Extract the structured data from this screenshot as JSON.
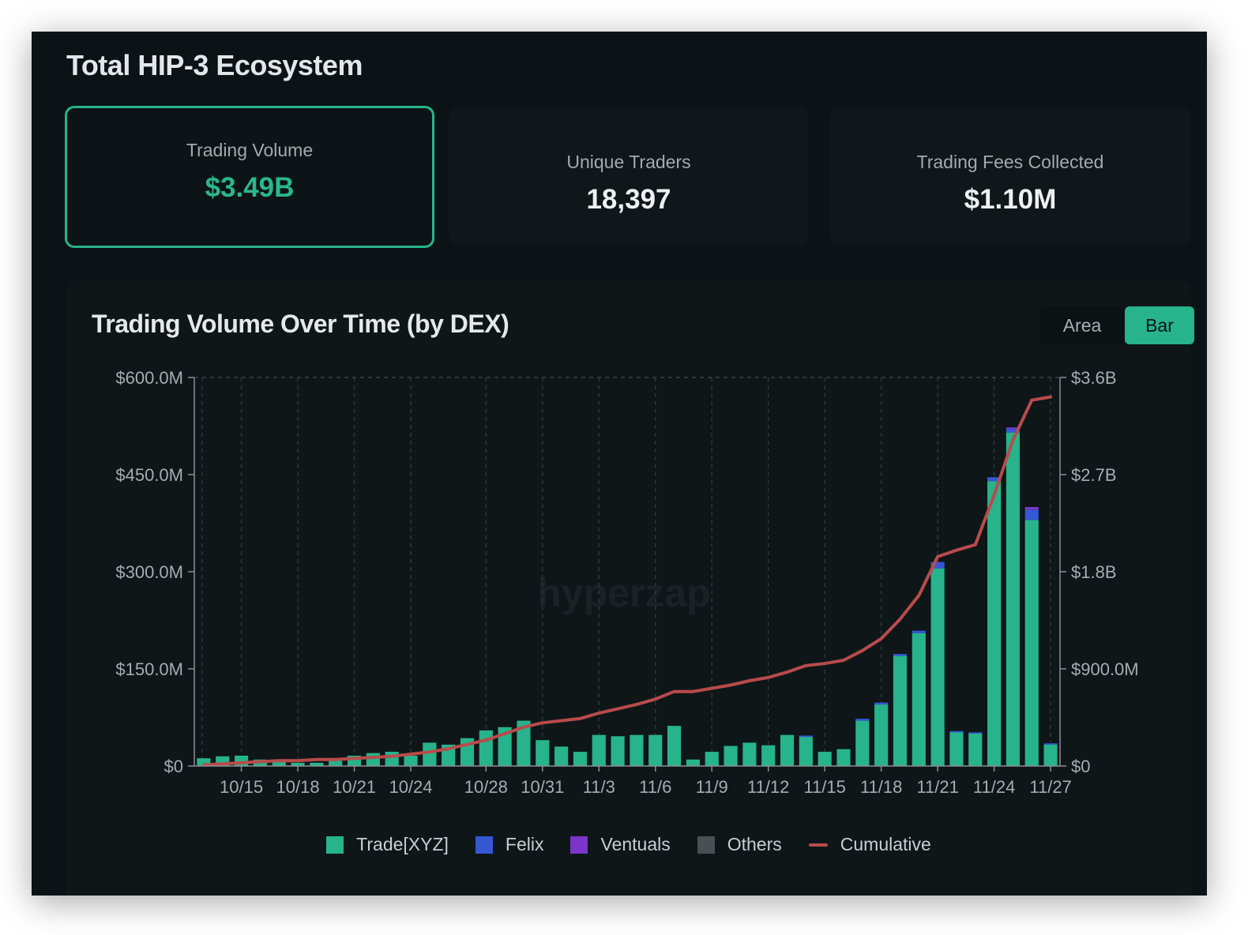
{
  "header": {
    "title": "Total HIP-3 Ecosystem"
  },
  "stats": [
    {
      "label": "Trading Volume",
      "value": "$3.49B"
    },
    {
      "label": "Unique Traders",
      "value": "18,397"
    },
    {
      "label": "Trading Fees Collected",
      "value": "$1.10M"
    }
  ],
  "chart_panel": {
    "title": "Trading Volume Over Time (by DEX)",
    "toggle": {
      "area_label": "Area",
      "bar_label": "Bar",
      "selected": "Bar"
    },
    "watermark": "hyperzap"
  },
  "colors": {
    "trade_xyz": "#27b38b",
    "felix": "#3557d4",
    "ventuals": "#7b35c9",
    "others": "#4a4f56",
    "cumulative": "#b94b4b",
    "accent": "#27b38b"
  },
  "chart_data": {
    "type": "bar",
    "title": "Trading Volume Over Time (by DEX)",
    "stacked": true,
    "x_tick_labels": [
      "10/15",
      "10/18",
      "10/21",
      "10/24",
      "10/28",
      "10/31",
      "11/3",
      "11/6",
      "11/9",
      "11/12",
      "11/15",
      "11/18",
      "11/21",
      "11/24",
      "11/27"
    ],
    "y_left": {
      "min": 0,
      "max": 600,
      "unit": "M",
      "ticks": [
        0,
        150,
        300,
        450,
        600
      ],
      "tick_labels": [
        "$0",
        "$150.0M",
        "$300.0M",
        "$450.0M",
        "$600.0M"
      ]
    },
    "y_right": {
      "min": 0,
      "max": 3.6,
      "unit": "B",
      "ticks": [
        0,
        0.9,
        1.8,
        2.7,
        3.6
      ],
      "tick_labels": [
        "$0",
        "$900.0M",
        "$1.8B",
        "$2.7B",
        "$3.6B"
      ]
    },
    "grid": "dashed-vertical",
    "categories": [
      "10/13",
      "10/14",
      "10/15",
      "10/16",
      "10/17",
      "10/18",
      "10/19",
      "10/20",
      "10/21",
      "10/22",
      "10/23",
      "10/24",
      "10/25",
      "10/26",
      "10/27",
      "10/28",
      "10/29",
      "10/30",
      "10/31",
      "11/1",
      "11/2",
      "11/3",
      "11/4",
      "11/5",
      "11/6",
      "11/7",
      "11/8",
      "11/9",
      "11/10",
      "11/11",
      "11/12",
      "11/13",
      "11/14",
      "11/15",
      "11/16",
      "11/17",
      "11/18",
      "11/19",
      "11/20",
      "11/21",
      "11/22",
      "11/23",
      "11/24",
      "11/25",
      "11/26",
      "11/27"
    ],
    "series": [
      {
        "name": "Trade[XYZ]",
        "values": [
          12,
          15,
          16,
          10,
          10,
          5,
          5,
          8,
          16,
          20,
          22,
          16,
          36,
          33,
          43,
          55,
          60,
          70,
          40,
          30,
          22,
          48,
          46,
          48,
          48,
          62,
          10,
          22,
          31,
          36,
          32,
          48,
          45,
          22,
          26,
          70,
          95,
          170,
          205,
          305,
          52,
          50,
          440,
          515,
          380,
          33
        ]
      },
      {
        "name": "Felix",
        "values": [
          0,
          0,
          0,
          0,
          0,
          0,
          0,
          0,
          0,
          0,
          0,
          0,
          0,
          0,
          0,
          0,
          0,
          0,
          0,
          0,
          0,
          0,
          0,
          0,
          0,
          0,
          0,
          0,
          0,
          0,
          0,
          0,
          2,
          0,
          0,
          3,
          3,
          3,
          4,
          10,
          2,
          2,
          6,
          6,
          16,
          2
        ]
      },
      {
        "name": "Ventuals",
        "values": [
          0,
          0,
          0,
          0,
          0,
          0,
          0,
          0,
          0,
          0,
          0,
          0,
          0,
          0,
          0,
          0,
          0,
          0,
          0,
          0,
          0,
          0,
          0,
          0,
          0,
          0,
          0,
          0,
          0,
          0,
          0,
          0,
          0,
          0,
          0,
          0,
          0,
          0,
          0,
          0,
          0,
          0,
          0,
          2,
          4,
          0
        ]
      },
      {
        "name": "Others",
        "values": [
          0,
          0,
          0,
          0,
          0,
          0,
          0,
          0,
          0,
          0,
          0,
          0,
          0,
          0,
          0,
          0,
          0,
          0,
          0,
          0,
          0,
          0,
          0,
          0,
          0,
          0,
          0,
          0,
          0,
          0,
          0,
          0,
          0,
          0,
          0,
          0,
          0,
          0,
          0,
          0,
          0,
          0,
          0,
          0,
          0,
          0
        ]
      }
    ],
    "cumulative": {
      "name": "Cumulative",
      "axis": "right",
      "values": [
        0.01,
        0.02,
        0.03,
        0.04,
        0.05,
        0.05,
        0.06,
        0.06,
        0.07,
        0.08,
        0.09,
        0.11,
        0.13,
        0.16,
        0.2,
        0.24,
        0.3,
        0.36,
        0.4,
        0.42,
        0.44,
        0.49,
        0.53,
        0.57,
        0.62,
        0.69,
        0.69,
        0.72,
        0.75,
        0.79,
        0.82,
        0.87,
        0.93,
        0.95,
        0.98,
        1.07,
        1.18,
        1.36,
        1.58,
        1.94,
        2.0,
        2.05,
        2.51,
        3.02,
        3.39,
        3.42
      ]
    },
    "legend": [
      "Trade[XYZ]",
      "Felix",
      "Ventuals",
      "Others",
      "Cumulative"
    ],
    "legend_position": "bottom-center"
  }
}
